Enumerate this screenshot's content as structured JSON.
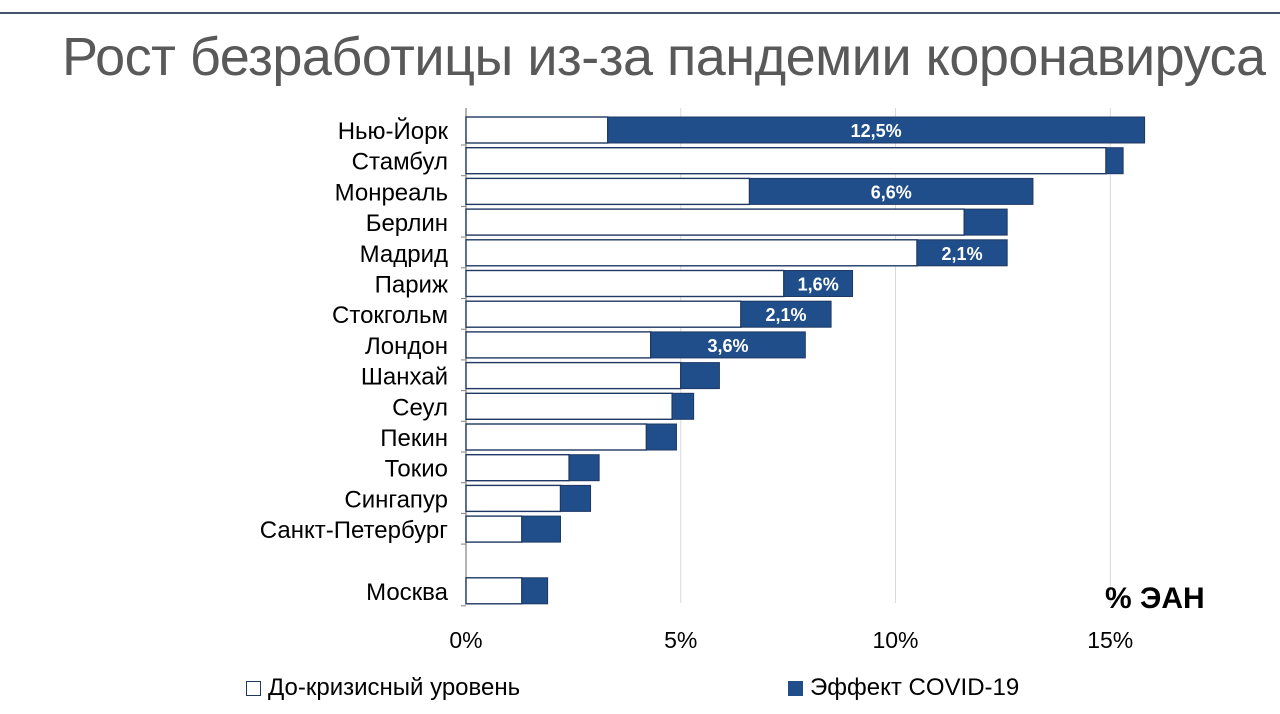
{
  "chart_data": {
    "type": "bar",
    "orientation": "horizontal",
    "stacked": true,
    "title": "Рост безработицы из-за пандемии коронавируса",
    "unit_label": "% ЭАН",
    "categories": [
      "Нью-Йорк",
      "Стамбул",
      "Монреаль",
      "Берлин",
      "Мадрид",
      "Париж",
      "Стокгольм",
      "Лондон",
      "Шанхай",
      "Сеул",
      "Пекин",
      "Токио",
      "Сингапур",
      "Санкт-Петербург",
      "Москва"
    ],
    "series": [
      {
        "name": "До-кризисный уровень",
        "values": [
          3.3,
          14.9,
          6.6,
          11.6,
          10.5,
          7.4,
          6.4,
          4.3,
          5.0,
          4.8,
          4.2,
          2.4,
          2.2,
          1.3,
          1.3
        ],
        "color": "#ffffff"
      },
      {
        "name": "Эффект COVID-19",
        "values": [
          12.5,
          0.4,
          6.6,
          1.0,
          2.1,
          1.6,
          2.1,
          3.6,
          0.9,
          0.5,
          0.7,
          0.7,
          0.7,
          0.9,
          0.6
        ],
        "color": "#1f4e8a",
        "labels": [
          "12,5%",
          "",
          "6,6%",
          "",
          "2,1%",
          "1,6%",
          "2,1%",
          "3,6%",
          "",
          "",
          "",
          "",
          "",
          "",
          ""
        ]
      }
    ],
    "xlim": [
      0,
      15.8
    ],
    "xticks": [
      0,
      5,
      10,
      15
    ],
    "xtick_labels": [
      "0%",
      "5%",
      "10%",
      "15%"
    ],
    "grid": "vertical",
    "legend_position": "bottom"
  }
}
